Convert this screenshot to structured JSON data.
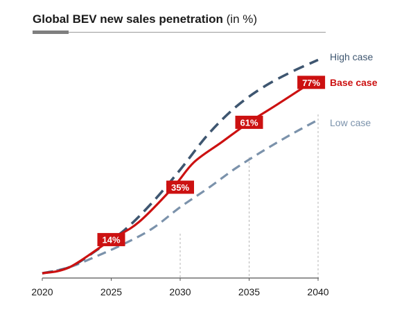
{
  "header": {
    "title_bold": "Global BEV new sales penetration",
    "title_unit": "(in %)"
  },
  "colors": {
    "base": "#cc1111",
    "high": "#3e5670",
    "low": "#7b92ab",
    "axis": "#555555",
    "guide": "#b5b5b5"
  },
  "chart_data": {
    "type": "line",
    "title": "Global BEV new sales penetration (in %)",
    "xlabel": "",
    "ylabel": "",
    "xlim": [
      2020,
      2040
    ],
    "ylim": [
      0,
      80
    ],
    "x_ticks": [
      "2020",
      "2025",
      "2030",
      "2035",
      "2040"
    ],
    "series": [
      {
        "name": "High case",
        "style": "dashed",
        "x": [
          2020,
          2022,
          2024,
          2026,
          2028,
          2030,
          2032,
          2034,
          2036,
          2038,
          2040
        ],
        "y": [
          0.5,
          3,
          10,
          18,
          29,
          42,
          56,
          67,
          75,
          81,
          86
        ]
      },
      {
        "name": "Base case",
        "style": "solid",
        "x": [
          2020,
          2022,
          2025,
          2027,
          2029.5,
          2031,
          2033,
          2035,
          2037,
          2039.5
        ],
        "y": [
          0.5,
          3,
          14,
          21,
          35,
          45,
          53,
          61,
          68,
          77
        ]
      },
      {
        "name": "Low case",
        "style": "dashed",
        "x": [
          2020,
          2022,
          2024,
          2026,
          2028,
          2030,
          2032,
          2034,
          2036,
          2038,
          2040
        ],
        "y": [
          0.5,
          3,
          7.5,
          12.5,
          18.5,
          27,
          34.5,
          42.5,
          49.5,
          56,
          62
        ]
      }
    ],
    "data_labels": [
      {
        "text": "14%",
        "x": 2025,
        "y": 14
      },
      {
        "text": "35%",
        "x": 2030,
        "y": 35
      },
      {
        "text": "61%",
        "x": 2035,
        "y": 61
      },
      {
        "text": "77%",
        "x": 2039.5,
        "y": 77
      }
    ],
    "guide_lines": [
      2030,
      2035,
      2040
    ],
    "legend": [
      {
        "text": "High case",
        "series": "High case"
      },
      {
        "text": "Base case",
        "series": "Base case"
      },
      {
        "text": "Low case",
        "series": "Low case"
      }
    ]
  }
}
